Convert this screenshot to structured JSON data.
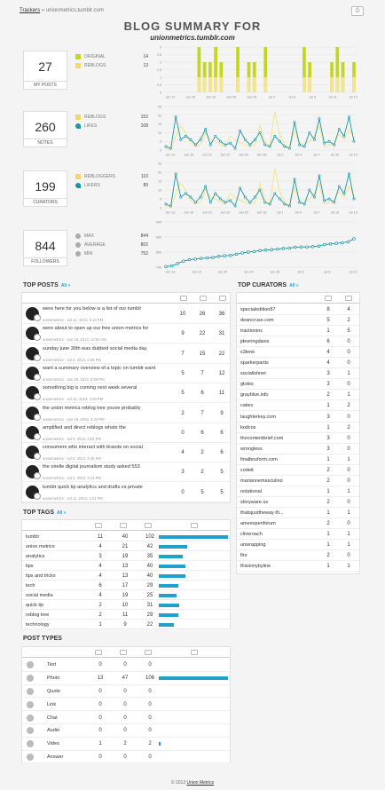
{
  "breadcrumb": {
    "link": "Trackers",
    "separator": "»",
    "current": "unionmetrics.tumblr.com"
  },
  "title": "BLOG SUMMARY FOR",
  "subtitle": "unionmetrics.tumblr.com",
  "colors": {
    "accent": "#1ea2c9",
    "lime": "#c5d71c",
    "pale": "#f4e38f",
    "teal": "#1a96a2"
  },
  "stats": [
    {
      "value": "27",
      "label": "MY POSTS",
      "legend": [
        {
          "icon": "pencil-icon",
          "label": "ORIGINAL",
          "value": "14"
        },
        {
          "icon": "reblog-icon",
          "label": "REBLOGS",
          "value": "13"
        }
      ]
    },
    {
      "value": "260",
      "label": "NOTES",
      "legend": [
        {
          "icon": "reblog-icon",
          "label": "REBLOGS",
          "value": "152"
        },
        {
          "icon": "heart-icon",
          "label": "LIKES",
          "value": "108"
        }
      ]
    },
    {
      "value": "199",
      "label": "CURATORS",
      "legend": [
        {
          "icon": "reblog-icon",
          "label": "REBLOGGERS",
          "value": "110"
        },
        {
          "icon": "heart-icon",
          "label": "LIKERS",
          "value": "89"
        }
      ]
    },
    {
      "value": "844",
      "label": "FOLLOWERS",
      "legend": [
        {
          "icon": "arrow-up-icon",
          "label": "MAX",
          "value": "844"
        },
        {
          "icon": "arrow-right-icon",
          "label": "AVERAGE",
          "value": "802"
        },
        {
          "icon": "arrow-down-icon",
          "label": "MIN",
          "value": "752"
        }
      ]
    }
  ],
  "chart_data": [
    {
      "type": "bar",
      "x_ticks": [
        "Jun 17",
        "Jun 20",
        "Jun 23",
        "Jun 26",
        "Jun 29",
        "Jul 2",
        "Jul 5",
        "Jul 8",
        "Jul 11",
        "Jul 14"
      ],
      "y_ticks": [
        "3",
        "2.5",
        "2",
        "1.5",
        "1",
        "0.5",
        "0"
      ],
      "ylim": [
        0,
        3
      ],
      "series": [
        {
          "values": [
            0,
            0,
            0,
            0,
            0,
            0,
            3,
            2,
            2,
            3,
            2,
            0,
            0,
            3,
            0,
            2,
            2,
            0,
            3,
            0,
            0,
            0,
            0,
            0,
            0,
            3,
            2,
            0,
            0,
            0,
            2,
            3,
            2,
            0,
            2
          ]
        },
        {
          "values": [
            0,
            0,
            0,
            0,
            0,
            0,
            1,
            1,
            1,
            1,
            1,
            0,
            0,
            1,
            0,
            1,
            1,
            0,
            1,
            0,
            0,
            0,
            0,
            0,
            0,
            1,
            1,
            0,
            0,
            0,
            1,
            1,
            1,
            0,
            1
          ]
        }
      ]
    },
    {
      "type": "line",
      "x_ticks": [
        "Jun 13",
        "Jun 16",
        "Jun 19",
        "Jun 22",
        "Jun 25",
        "Jun 28",
        "Jul 1",
        "Jul 4",
        "Jul 7",
        "Jul 10",
        "Jul 13"
      ],
      "y_ticks": [
        "25",
        "20",
        "15",
        "10",
        "5",
        "0"
      ],
      "ylim": [
        0,
        25
      ],
      "series": [
        {
          "values": [
            2,
            1,
            19,
            6,
            8,
            6,
            3,
            6,
            12,
            3,
            8,
            5,
            3,
            4,
            1,
            11,
            6,
            3,
            6,
            10,
            3,
            2,
            8,
            5,
            2,
            1,
            16,
            3,
            2,
            10,
            6,
            18,
            4,
            5,
            3,
            12,
            8,
            19,
            5
          ]
        },
        {
          "values": [
            1,
            0,
            8,
            14,
            10,
            4,
            2,
            3,
            10,
            6,
            5,
            3,
            2,
            8,
            6,
            4,
            3,
            2,
            3,
            14,
            5,
            2,
            22,
            9,
            3,
            1,
            11,
            4,
            3,
            5,
            8,
            14,
            2,
            3,
            4,
            9,
            6,
            12,
            7
          ]
        }
      ]
    },
    {
      "type": "line",
      "x_ticks": [
        "Jun 13",
        "Jun 16",
        "Jun 19",
        "Jun 22",
        "Jun 25",
        "Jun 28",
        "Jul 1",
        "Jul 4",
        "Jul 7",
        "Jul 10",
        "Jul 13"
      ],
      "y_ticks": [
        "25",
        "20",
        "15",
        "10",
        "5",
        "0"
      ],
      "ylim": [
        0,
        25
      ],
      "series": [
        {
          "values": [
            2,
            1,
            19,
            6,
            8,
            6,
            3,
            6,
            12,
            3,
            8,
            5,
            3,
            4,
            1,
            11,
            6,
            3,
            6,
            10,
            3,
            2,
            8,
            5,
            2,
            1,
            16,
            3,
            2,
            10,
            6,
            18,
            4,
            5,
            3,
            12,
            8,
            19,
            5
          ]
        },
        {
          "values": [
            1,
            0,
            8,
            14,
            10,
            4,
            2,
            3,
            10,
            6,
            5,
            3,
            2,
            8,
            6,
            4,
            3,
            2,
            3,
            14,
            5,
            2,
            22,
            9,
            3,
            1,
            11,
            4,
            3,
            5,
            8,
            14,
            2,
            3,
            4,
            9,
            6,
            12,
            7
          ]
        }
      ]
    },
    {
      "type": "line",
      "x_ticks": [
        "Jun 13",
        "Jun 16",
        "Jun 20",
        "Jun 24",
        "Jun 28",
        "Jul 2",
        "Jul 6",
        "Jul 10"
      ],
      "y_ticks": [
        "900",
        "850",
        "800",
        "750"
      ],
      "ylim": [
        750,
        900
      ],
      "series": [
        {
          "values": [
            752,
            754,
            762,
            770,
            775,
            777,
            779,
            781,
            782,
            786,
            788,
            789,
            793,
            797,
            800,
            802,
            805,
            807,
            808,
            810,
            812,
            813,
            816,
            817,
            817,
            818,
            820,
            825,
            827,
            829,
            831,
            834,
            844
          ]
        }
      ]
    }
  ],
  "top_posts": {
    "title": "TOP POSTS",
    "all": "All »",
    "icons": [
      "reblog-icon",
      "heart-icon",
      "copy-icon"
    ],
    "rows": [
      {
        "title": "were here for you below is a list of our tumblr",
        "meta": "unionmetrics - Jul 12, 2013, 5:14 PM",
        "a": "10",
        "b": "26",
        "c": "36"
      },
      {
        "title": "were about to open up our free union metrics for",
        "meta": "unionmetrics - Jun 18, 2013, 12:52 AM",
        "a": "9",
        "b": "22",
        "c": "31"
      },
      {
        "title": "sunday june 30th was dubbed social media day",
        "meta": "unionmetrics - Jul 2, 2013, 2:56 PM",
        "a": "7",
        "b": "15",
        "c": "22"
      },
      {
        "title": "want a summary overview of a topic on tumblr want",
        "meta": "unionmetrics - Jun 26, 2013, 5:09 PM",
        "a": "5",
        "b": "7",
        "c": "12"
      },
      {
        "title": "something big is coming next week several",
        "meta": "unionmetrics - Jul 12, 2013, 4:28 PM",
        "a": "5",
        "b": "6",
        "c": "11"
      },
      {
        "title": "the union metrics reblog tree youve probably",
        "meta": "unionmetrics - Jun 19, 2013, 3:44 PM",
        "a": "2",
        "b": "7",
        "c": "9"
      },
      {
        "title": "amplified and direct reblogs whats the",
        "meta": "unionmetrics - Jul 3, 2013, 3:52 PM",
        "a": "0",
        "b": "6",
        "c": "6"
      },
      {
        "title": "consumers who interact with brands on social",
        "meta": "unionmetrics - Jul 8, 2013, 4:40 PM",
        "a": "4",
        "b": "2",
        "c": "6"
      },
      {
        "title": "the orielle digital journalism study asked 553",
        "meta": "unionmetrics - Jul 1, 2013, 3:14 PM",
        "a": "3",
        "b": "2",
        "c": "5"
      },
      {
        "title": "tumblr quick tip analytics and drafts vs private",
        "meta": "unionmetrics - Jul 11, 2013, 4:21 PM",
        "a": "0",
        "b": "5",
        "c": "5"
      }
    ]
  },
  "top_curators": {
    "title": "TOP CURATORS",
    "all": "All »",
    "icons": [
      "reblog-icon",
      "heart-icon"
    ],
    "rows": [
      {
        "name": "specialedition87",
        "a": "8",
        "b": "4"
      },
      {
        "name": "deancruse.com",
        "a": "5",
        "b": "2"
      },
      {
        "name": "tractioninc",
        "a": "1",
        "b": "5"
      },
      {
        "name": "jdeeringdavis",
        "a": "6",
        "b": "0"
      },
      {
        "name": "s3lene",
        "a": "4",
        "b": "0"
      },
      {
        "name": "sparkerpants",
        "a": "4",
        "b": "0"
      },
      {
        "name": "socialishnet",
        "a": "3",
        "b": "1"
      },
      {
        "name": "gtokio",
        "a": "3",
        "b": "0"
      },
      {
        "name": "grayblue.info",
        "a": "2",
        "b": "1"
      },
      {
        "name": "catiev",
        "a": "1",
        "b": "2"
      },
      {
        "name": "laughterkey.com",
        "a": "3",
        "b": "0"
      },
      {
        "name": "kodcos",
        "a": "1",
        "b": "2"
      },
      {
        "name": "thecontentbrief.com",
        "a": "3",
        "b": "0"
      },
      {
        "name": "wrongless",
        "a": "3",
        "b": "0"
      },
      {
        "name": "finalbosform.com",
        "a": "1",
        "b": "1"
      },
      {
        "name": "codeit",
        "a": "2",
        "b": "0"
      },
      {
        "name": "mariannemasculino",
        "a": "2",
        "b": "0"
      },
      {
        "name": "notational",
        "a": "1",
        "b": "1"
      },
      {
        "name": "storyware.us",
        "a": "2",
        "b": "0"
      },
      {
        "name": "thatsjusttheway th...",
        "a": "1",
        "b": "1"
      },
      {
        "name": "amexopenforum",
        "a": "2",
        "b": "0"
      },
      {
        "name": "cliveroach",
        "a": "1",
        "b": "1"
      },
      {
        "name": "unwrapping",
        "a": "1",
        "b": "1"
      },
      {
        "name": "flnr",
        "a": "2",
        "b": "0"
      },
      {
        "name": "thisismybyline",
        "a": "1",
        "b": "1"
      }
    ]
  },
  "top_tags": {
    "title": "TOP TAGS",
    "all": "All »",
    "icons": [
      "pencil-icon",
      "reblog-icon",
      "heart-icon",
      "copy-icon"
    ],
    "rows": [
      {
        "name": "tumblr",
        "a": "11",
        "b": "40",
        "c": "102",
        "share": 1.0
      },
      {
        "name": "union metrics",
        "a": "4",
        "b": "21",
        "c": "42",
        "share": 0.41
      },
      {
        "name": "analytics",
        "a": "3",
        "b": "19",
        "c": "35",
        "share": 0.34
      },
      {
        "name": "tips",
        "a": "4",
        "b": "13",
        "c": "40",
        "share": 0.39
      },
      {
        "name": "tips and tricks",
        "a": "4",
        "b": "13",
        "c": "40",
        "share": 0.39
      },
      {
        "name": "tech",
        "a": "6",
        "b": "17",
        "c": "29",
        "share": 0.28
      },
      {
        "name": "social media",
        "a": "4",
        "b": "19",
        "c": "25",
        "share": 0.25
      },
      {
        "name": "quick tip",
        "a": "2",
        "b": "10",
        "c": "31",
        "share": 0.3
      },
      {
        "name": "reblog tree",
        "a": "2",
        "b": "11",
        "c": "29",
        "share": 0.28
      },
      {
        "name": "technology",
        "a": "1",
        "b": "9",
        "c": "22",
        "share": 0.22
      }
    ]
  },
  "post_types": {
    "title": "POST TYPES",
    "icons": [
      "pencil-icon",
      "reblog-icon",
      "heart-icon",
      "copy-icon"
    ],
    "rows": [
      {
        "icon": "text-icon",
        "name": "Text",
        "a": "0",
        "b": "0",
        "c": "0",
        "share": 0
      },
      {
        "icon": "photo-icon",
        "name": "Photo",
        "a": "13",
        "b": "47",
        "c": "106",
        "share": 1.0
      },
      {
        "icon": "quote-icon",
        "name": "Quote",
        "a": "0",
        "b": "0",
        "c": "0",
        "share": 0
      },
      {
        "icon": "link-icon",
        "name": "Link",
        "a": "0",
        "b": "0",
        "c": "0",
        "share": 0
      },
      {
        "icon": "chat-icon",
        "name": "Chat",
        "a": "0",
        "b": "0",
        "c": "0",
        "share": 0
      },
      {
        "icon": "audio-icon",
        "name": "Audio",
        "a": "0",
        "b": "0",
        "c": "0",
        "share": 0
      },
      {
        "icon": "video-icon",
        "name": "Video",
        "a": "1",
        "b": "2",
        "c": "2",
        "share": 0.03
      },
      {
        "icon": "answer-icon",
        "name": "Answer",
        "a": "0",
        "b": "0",
        "c": "0",
        "share": 0
      }
    ]
  },
  "footer": {
    "prefix": "© 2013",
    "link": "Union Metrics"
  }
}
